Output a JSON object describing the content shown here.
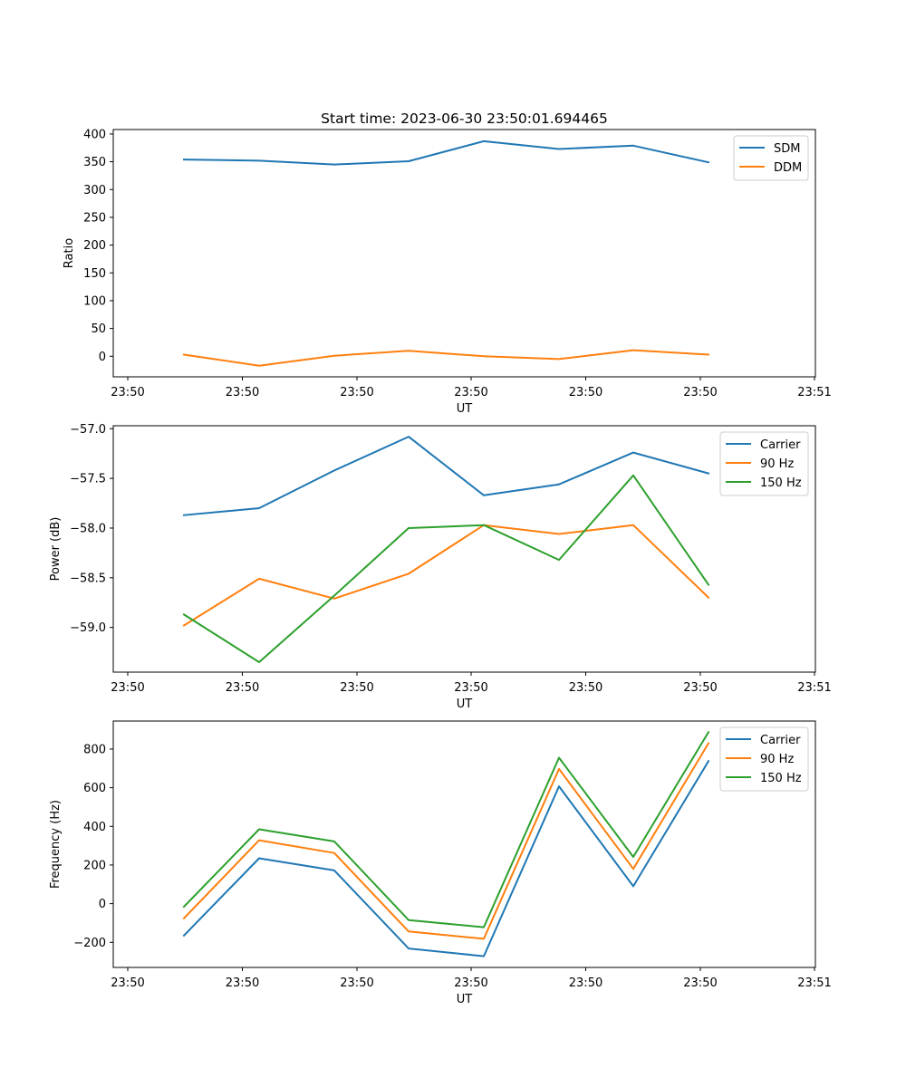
{
  "colors": {
    "blue": "#1f77b4",
    "orange": "#ff7f0e",
    "green": "#2ca02c"
  },
  "chart_data": [
    {
      "type": "line",
      "title": "Start time: 2023-06-30 23:50:01.694465",
      "xlabel": "UT",
      "ylabel": "Ratio",
      "x_tick_labels": [
        "23:50",
        "23:50",
        "23:50",
        "23:50",
        "23:50",
        "23:50",
        "23:50",
        "23:51"
      ],
      "y_ticks": [
        0,
        50,
        100,
        150,
        200,
        250,
        300,
        350,
        400
      ],
      "y_tick_labels": [
        "0",
        "50",
        "100",
        "150",
        "200",
        "250",
        "300",
        "350",
        "400"
      ],
      "ylim": [
        -37,
        408
      ],
      "legend_position": "upper right",
      "series": [
        {
          "name": "SDM",
          "color": "blue",
          "values": [
            354,
            352,
            345,
            351,
            387,
            373,
            379,
            349
          ]
        },
        {
          "name": "DDM",
          "color": "orange",
          "values": [
            3,
            -17,
            1,
            10,
            0,
            -5,
            11,
            3
          ]
        }
      ]
    },
    {
      "type": "line",
      "title": "",
      "xlabel": "UT",
      "ylabel": "Power (dB)",
      "x_tick_labels": [
        "23:50",
        "23:50",
        "23:50",
        "23:50",
        "23:50",
        "23:50",
        "23:50",
        "23:51"
      ],
      "y_ticks": [
        -59.0,
        -58.5,
        -58.0,
        -57.5,
        -57.0
      ],
      "y_tick_labels": [
        "−59.0",
        "−58.5",
        "−58.0",
        "−57.5",
        "−57.0"
      ],
      "ylim": [
        -59.45,
        -56.97
      ],
      "legend_position": "upper right",
      "series": [
        {
          "name": "Carrier",
          "color": "blue",
          "values": [
            -57.87,
            -57.8,
            -57.42,
            -57.08,
            -57.67,
            -57.56,
            -57.24,
            -57.45
          ]
        },
        {
          "name": "90 Hz",
          "color": "orange",
          "values": [
            -58.98,
            -58.51,
            -58.71,
            -58.46,
            -57.97,
            -58.06,
            -57.97,
            -58.7
          ]
        },
        {
          "name": "150 Hz",
          "color": "green",
          "values": [
            -58.87,
            -59.35,
            -58.68,
            -58.0,
            -57.97,
            -58.32,
            -57.47,
            -58.57
          ]
        }
      ]
    },
    {
      "type": "line",
      "title": "",
      "xlabel": "UT",
      "ylabel": "Frequency (Hz)",
      "x_tick_labels": [
        "23:50",
        "23:50",
        "23:50",
        "23:50",
        "23:50",
        "23:50",
        "23:50",
        "23:51"
      ],
      "y_ticks": [
        -200,
        0,
        200,
        400,
        600,
        800
      ],
      "y_tick_labels": [
        "−200",
        "0",
        "200",
        "400",
        "600",
        "800"
      ],
      "ylim": [
        -330,
        945
      ],
      "legend_position": "upper right",
      "series": [
        {
          "name": "Carrier",
          "color": "blue",
          "values": [
            -165,
            235,
            172,
            -232,
            -272,
            607,
            90,
            738
          ]
        },
        {
          "name": "90 Hz",
          "color": "orange",
          "values": [
            -76,
            328,
            262,
            -144,
            -182,
            697,
            180,
            830
          ]
        },
        {
          "name": "150 Hz",
          "color": "green",
          "values": [
            -16,
            385,
            322,
            -85,
            -122,
            755,
            242,
            888
          ]
        }
      ]
    }
  ]
}
